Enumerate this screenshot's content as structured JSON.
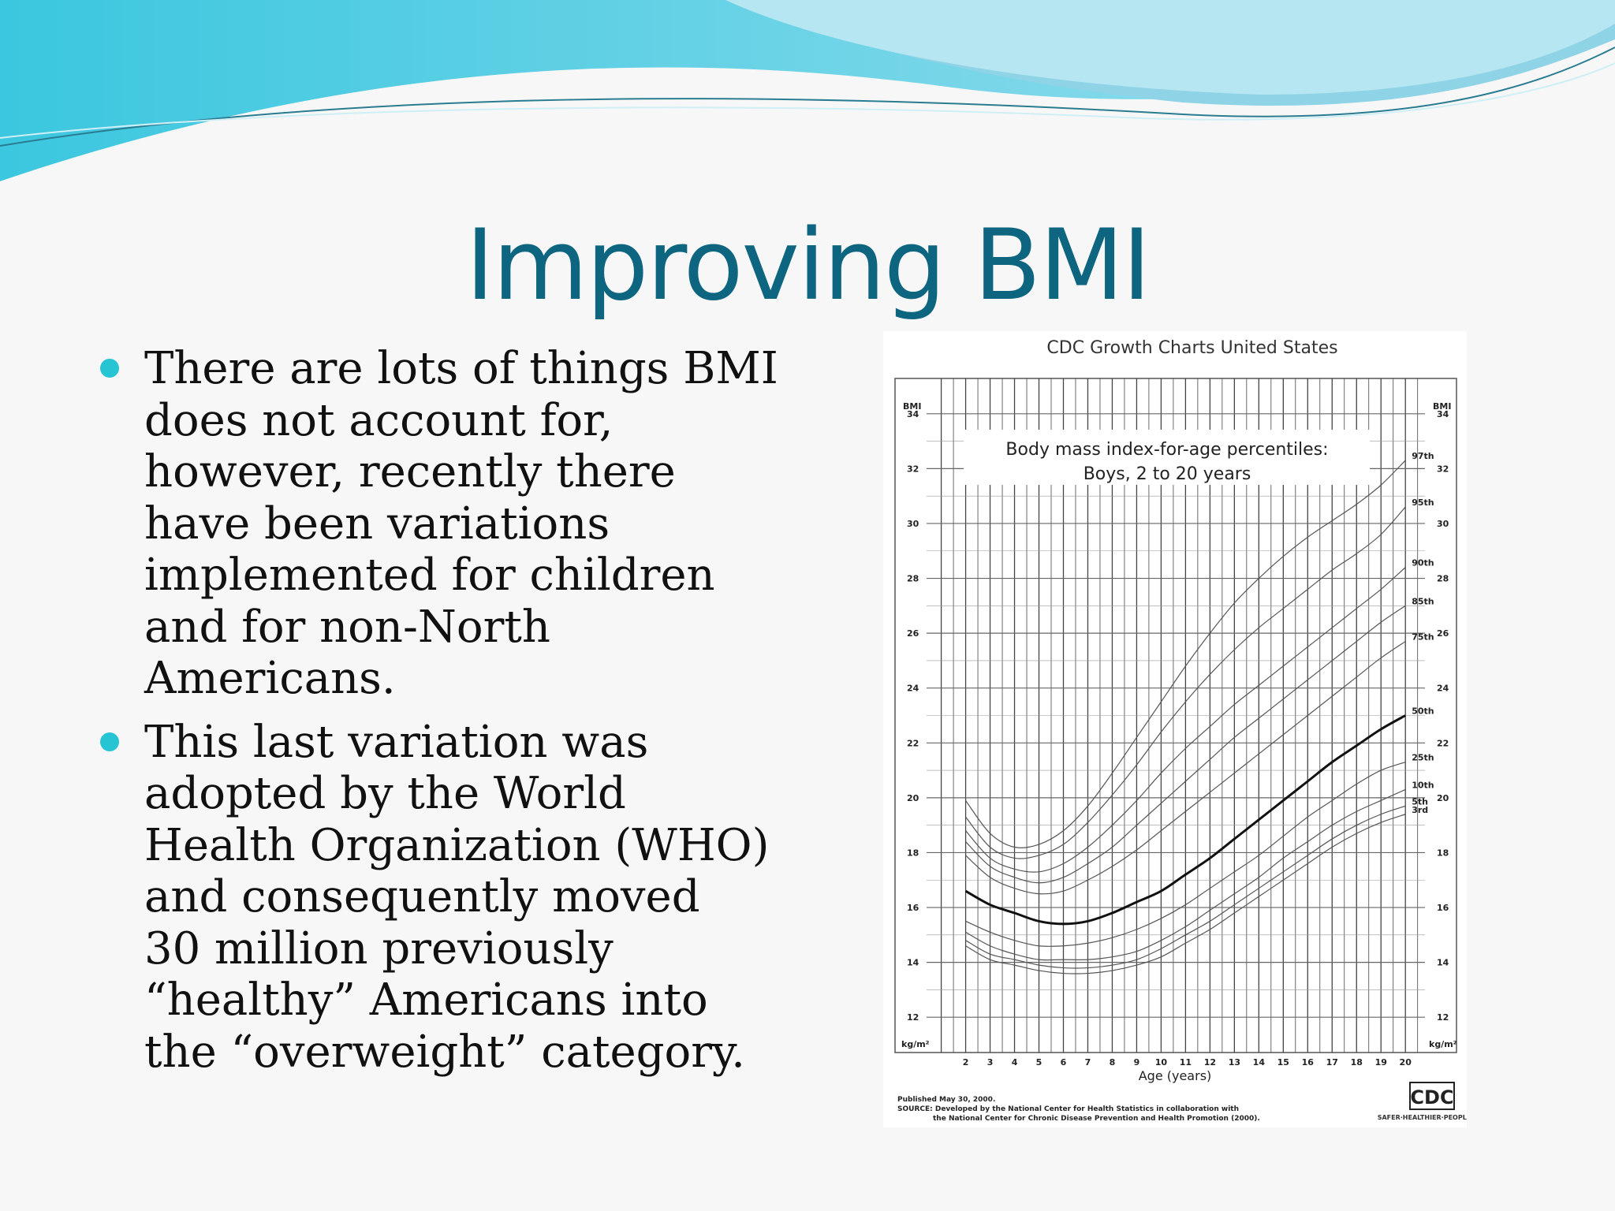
{
  "slide": {
    "title": "Improving BMI",
    "bullets": [
      {
        "text": "There are lots of things BMI\ndoes not account for,\nhowever, recently there\nhave been variations\nimplemented for children\nand for non-North\nAmericans."
      },
      {
        "text": "This last variation was\nadopted by the World\nHealth Organization (WHO)\nand consequently moved\n30 million previously\n“healthy” Americans into\nthe “overweight” category."
      }
    ],
    "colors": {
      "title": "#0d6580",
      "bullet": "#27c4d4",
      "wave_light": "#9fdcec",
      "wave_dark": "#58c6de"
    }
  },
  "chart_data": {
    "type": "line",
    "header": "CDC Growth Charts United States",
    "title": "Body mass index-for-age percentiles:",
    "subtitle": "Boys, 2 to 20 years",
    "xlabel": "Age (years)",
    "ylabel": "BMI",
    "yunit": "kg/m²",
    "xlim": [
      2,
      20
    ],
    "ylim": [
      12,
      34
    ],
    "x_ticks": [
      2,
      3,
      4,
      5,
      6,
      7,
      8,
      9,
      10,
      11,
      12,
      13,
      14,
      15,
      16,
      17,
      18,
      19,
      20
    ],
    "y_ticks": [
      12,
      14,
      16,
      18,
      20,
      22,
      24,
      26,
      28,
      30,
      32,
      34
    ],
    "grid": true,
    "x": [
      2,
      3,
      4,
      5,
      6,
      7,
      8,
      9,
      10,
      11,
      12,
      13,
      14,
      15,
      16,
      17,
      18,
      19,
      20
    ],
    "series": [
      {
        "name": "97th",
        "values": [
          19.9,
          18.7,
          18.2,
          18.3,
          18.8,
          19.7,
          20.9,
          22.2,
          23.5,
          24.8,
          26.0,
          27.1,
          28.0,
          28.8,
          29.5,
          30.1,
          30.7,
          31.4,
          32.3
        ]
      },
      {
        "name": "95th",
        "values": [
          19.3,
          18.2,
          17.8,
          17.9,
          18.3,
          19.1,
          20.1,
          21.2,
          22.4,
          23.5,
          24.5,
          25.4,
          26.2,
          26.9,
          27.6,
          28.3,
          28.9,
          29.6,
          30.6
        ]
      },
      {
        "name": "90th",
        "values": [
          18.8,
          17.8,
          17.4,
          17.3,
          17.6,
          18.2,
          19.0,
          19.9,
          20.9,
          21.8,
          22.6,
          23.4,
          24.1,
          24.8,
          25.5,
          26.2,
          26.9,
          27.6,
          28.4
        ]
      },
      {
        "name": "85th",
        "values": [
          18.4,
          17.5,
          17.1,
          16.9,
          17.1,
          17.6,
          18.2,
          19.0,
          19.8,
          20.6,
          21.4,
          22.2,
          22.9,
          23.6,
          24.3,
          25.0,
          25.7,
          26.4,
          27.0
        ]
      },
      {
        "name": "75th",
        "values": [
          17.9,
          17.1,
          16.7,
          16.5,
          16.6,
          17.0,
          17.5,
          18.1,
          18.8,
          19.5,
          20.2,
          20.9,
          21.6,
          22.3,
          23.0,
          23.7,
          24.4,
          25.1,
          25.7
        ]
      },
      {
        "name": "50th",
        "values": [
          16.6,
          16.1,
          15.8,
          15.5,
          15.4,
          15.5,
          15.8,
          16.2,
          16.6,
          17.2,
          17.8,
          18.5,
          19.2,
          19.9,
          20.6,
          21.3,
          21.9,
          22.5,
          23.0
        ]
      },
      {
        "name": "25th",
        "values": [
          15.5,
          15.1,
          14.8,
          14.6,
          14.6,
          14.7,
          14.9,
          15.2,
          15.6,
          16.1,
          16.7,
          17.3,
          17.9,
          18.6,
          19.3,
          19.9,
          20.5,
          21.0,
          21.3
        ]
      },
      {
        "name": "10th",
        "values": [
          15.1,
          14.6,
          14.3,
          14.1,
          14.1,
          14.1,
          14.2,
          14.4,
          14.8,
          15.3,
          15.9,
          16.5,
          17.1,
          17.8,
          18.4,
          19.0,
          19.5,
          19.9,
          20.3
        ]
      },
      {
        "name": "5th",
        "values": [
          14.8,
          14.3,
          14.1,
          13.9,
          13.8,
          13.8,
          13.9,
          14.1,
          14.5,
          15.0,
          15.5,
          16.1,
          16.7,
          17.3,
          17.9,
          18.5,
          19.0,
          19.4,
          19.7
        ]
      },
      {
        "name": "3rd",
        "values": [
          14.6,
          14.1,
          13.9,
          13.7,
          13.6,
          13.6,
          13.7,
          13.9,
          14.2,
          14.7,
          15.2,
          15.8,
          16.4,
          17.0,
          17.6,
          18.2,
          18.7,
          19.1,
          19.4
        ]
      }
    ],
    "footer_lines": [
      "Published May 30, 2000.",
      "SOURCE: Developed by the National Center for Health Statistics in collaboration with",
      "the National Center for Chronic Disease Prevention and Health Promotion (2000)."
    ],
    "logo_text": "CDC",
    "logo_tagline": "SAFER·HEALTHIER·PEOPLE™"
  }
}
